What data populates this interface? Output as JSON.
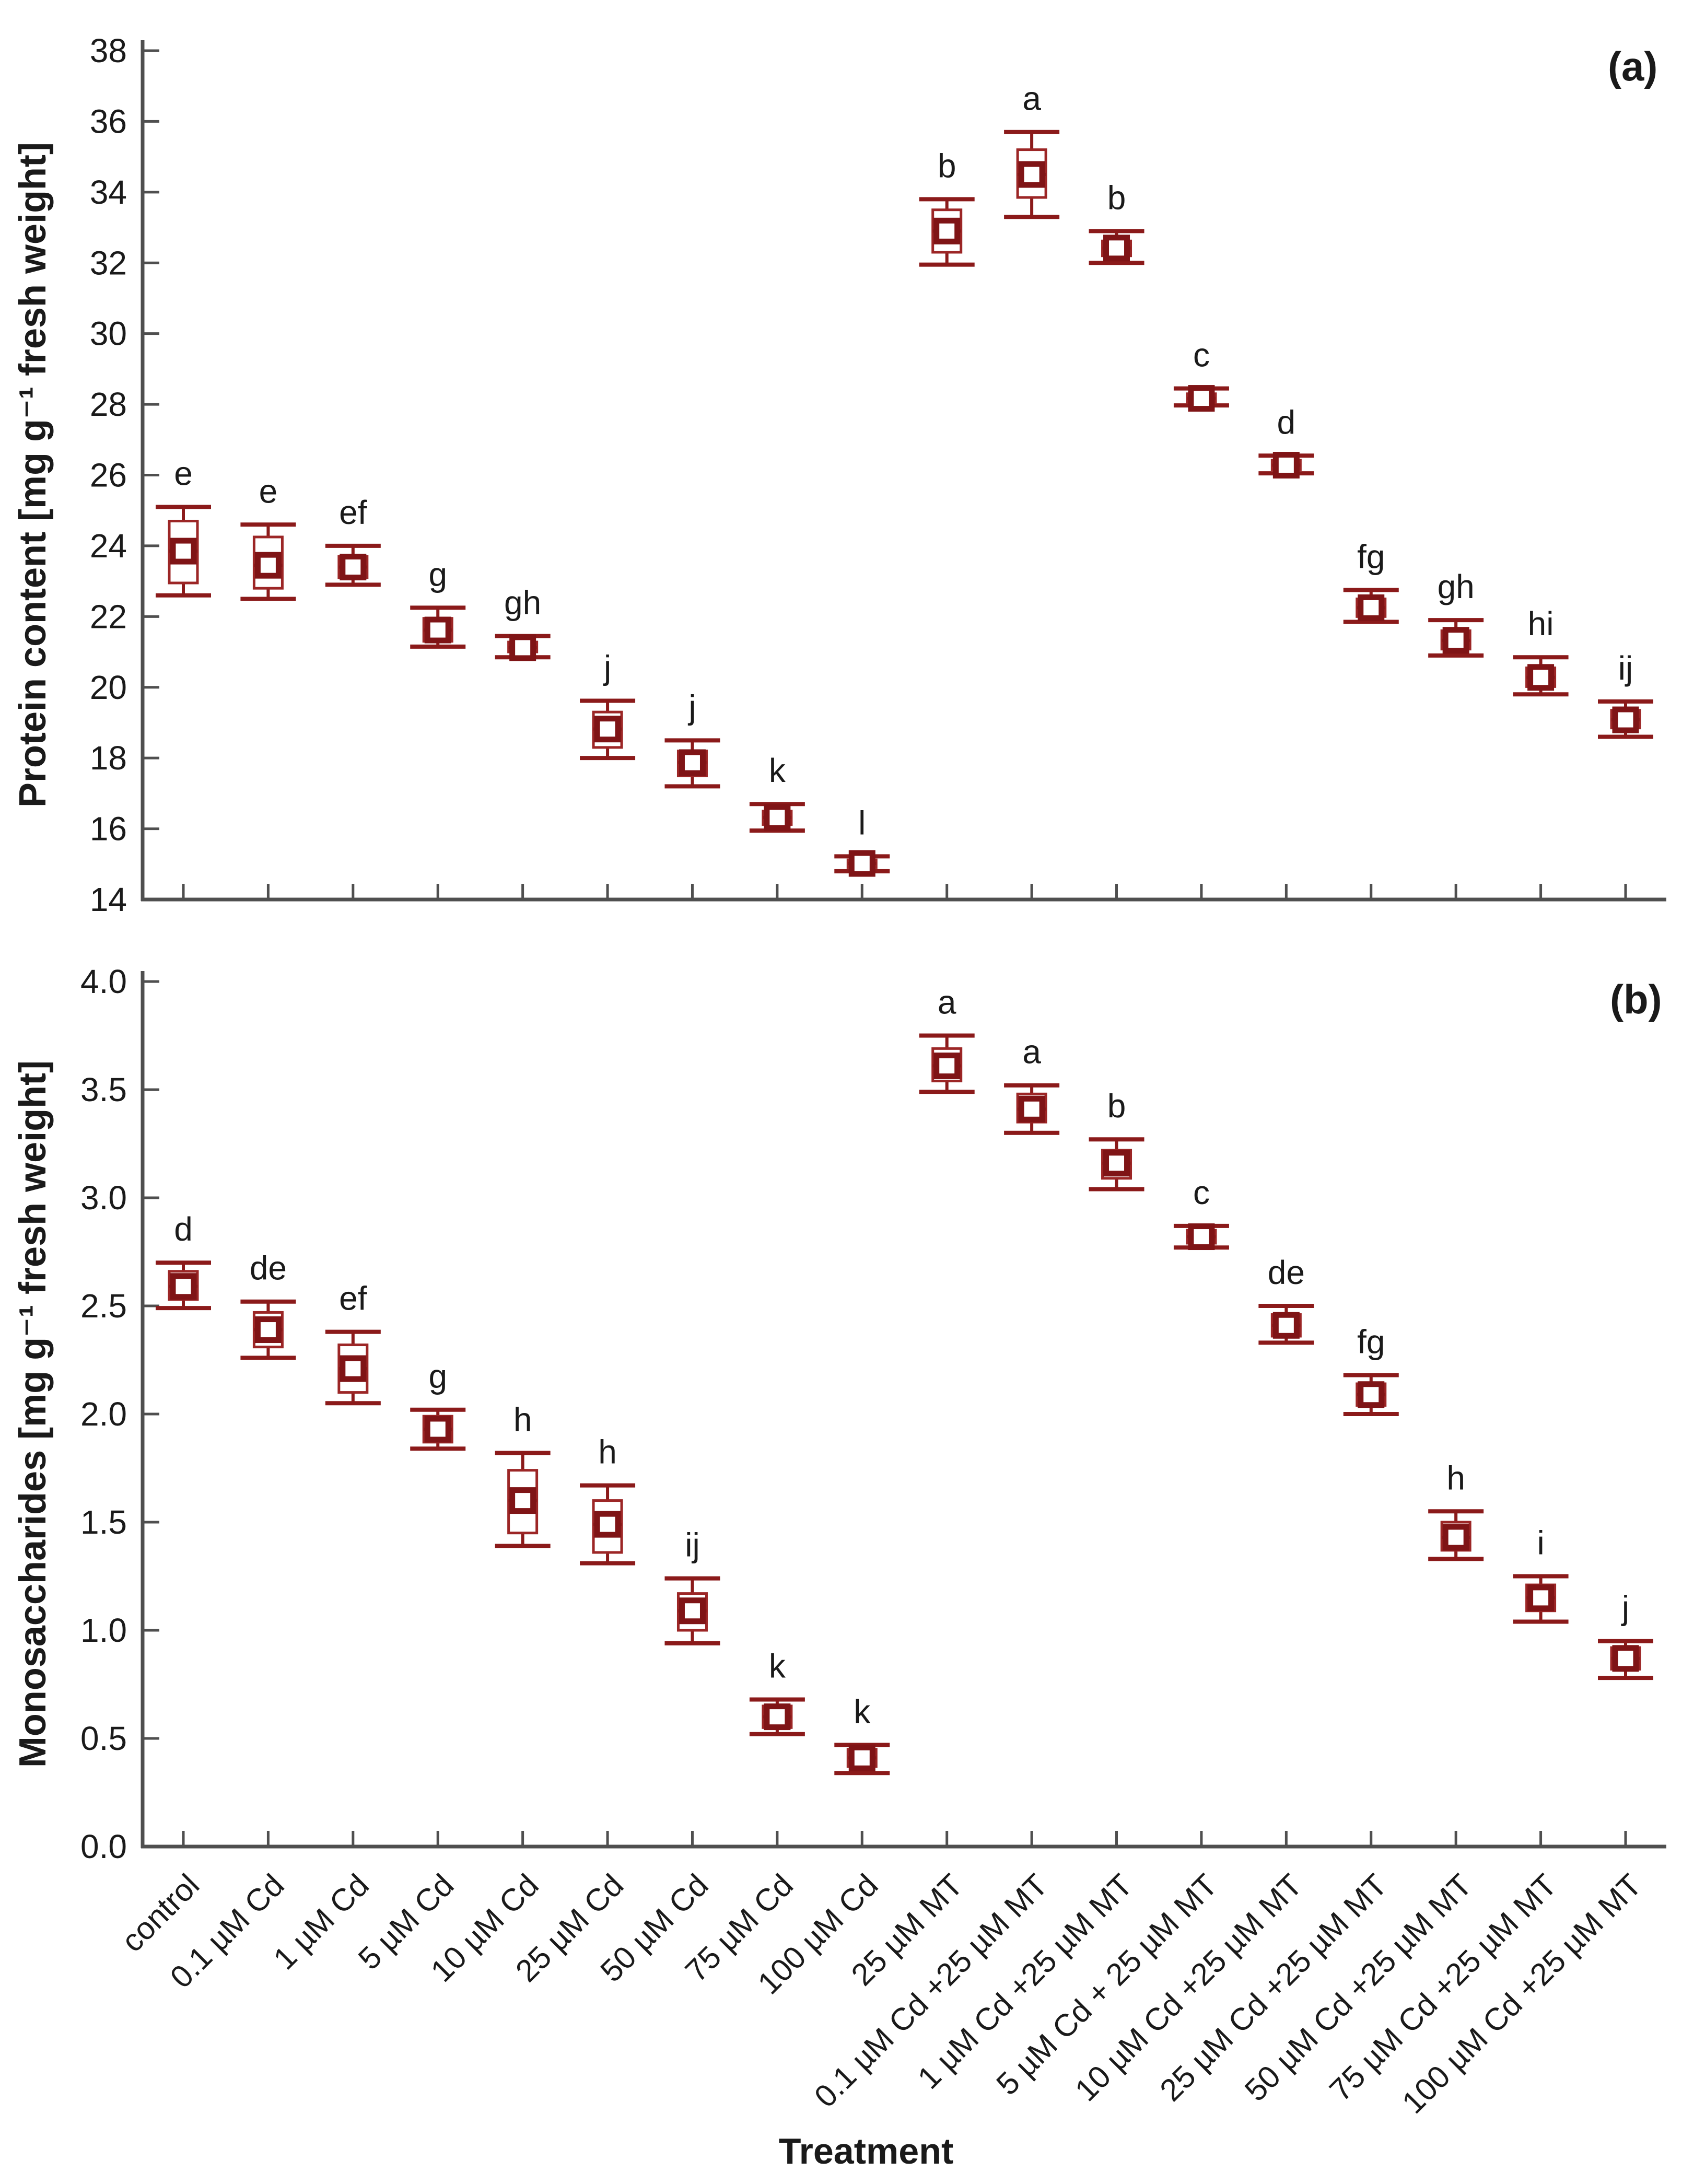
{
  "figure": {
    "panel_a_label": "(a)",
    "panel_b_label": "(b)",
    "x_axis_title": "Treatment",
    "box_color": "#8b1a1a",
    "box_outline_color": "#9c2626",
    "mean_square_color": "#7f1416",
    "axis_color": "#4f4f4f",
    "text_color": "#1a1a1a",
    "background_color": "#ffffff"
  },
  "categories": [
    "control",
    "0.1 µM Cd",
    "1 µM Cd",
    "5 µM Cd",
    "10 µM Cd",
    "25 µM Cd",
    "50 µM Cd",
    "75 µM Cd",
    "100 µM Cd",
    "25 µM MT",
    "0.1 µM Cd +25 µM MT",
    "1 µM Cd +25 µM MT",
    "5 µM Cd + 25 µM MT",
    "10 µM Cd +25 µM MT",
    "25 µM Cd +25 µM MT",
    "50 µM Cd +25 µM MT",
    "75 µM Cd +25 µM MT",
    "100 µM Cd +25 µM MT"
  ],
  "chart_data": [
    {
      "type": "box",
      "panel": "a",
      "title": "",
      "xlabel": "Treatment",
      "ylabel": "Protein content [mg g⁻¹ fresh weight]",
      "ylim": [
        14,
        38
      ],
      "grid": false,
      "x_tick_labels_shown": false,
      "yticks": [
        {
          "value": 14,
          "label": "14"
        },
        {
          "value": 16,
          "label": "16"
        },
        {
          "value": 18,
          "label": "18"
        },
        {
          "value": 20,
          "label": "20"
        },
        {
          "value": 22,
          "label": "22"
        },
        {
          "value": 24,
          "label": "24"
        },
        {
          "value": 26,
          "label": "26"
        },
        {
          "value": 28,
          "label": "28"
        },
        {
          "value": 30,
          "label": "30"
        },
        {
          "value": 32,
          "label": "32"
        },
        {
          "value": 34,
          "label": "34"
        },
        {
          "value": 36,
          "label": "36"
        },
        {
          "value": 38,
          "label": "38"
        }
      ],
      "boxes": [
        {
          "category": "control",
          "letter": "e",
          "low": 22.6,
          "q1": 22.95,
          "mean": 23.85,
          "q3": 24.7,
          "high": 25.1
        },
        {
          "category": "0.1 µM Cd",
          "letter": "e",
          "low": 22.5,
          "q1": 22.8,
          "mean": 23.45,
          "q3": 24.25,
          "high": 24.6
        },
        {
          "category": "1 µM Cd",
          "letter": "ef",
          "low": 22.9,
          "q1": 23.1,
          "mean": 23.4,
          "q3": 23.7,
          "high": 24.0
        },
        {
          "category": "5 µM Cd",
          "letter": "g",
          "low": 21.15,
          "q1": 21.3,
          "mean": 21.62,
          "q3": 21.95,
          "high": 22.25
        },
        {
          "category": "10 µM Cd",
          "letter": "gh",
          "low": 20.85,
          "q1": 21.0,
          "mean": 21.12,
          "q3": 21.28,
          "high": 21.45
        },
        {
          "category": "25 µM Cd",
          "letter": "j",
          "low": 18.0,
          "q1": 18.3,
          "mean": 18.82,
          "q3": 19.3,
          "high": 19.62
        },
        {
          "category": "50 µM Cd",
          "letter": "j",
          "low": 17.2,
          "q1": 17.5,
          "mean": 17.87,
          "q3": 18.2,
          "high": 18.5
        },
        {
          "category": "75 µM Cd",
          "letter": "k",
          "low": 15.95,
          "q1": 16.12,
          "mean": 16.32,
          "q3": 16.5,
          "high": 16.7
        },
        {
          "category": "100 µM Cd",
          "letter": "l",
          "low": 14.8,
          "q1": 14.9,
          "mean": 15.02,
          "q3": 15.12,
          "high": 15.22
        },
        {
          "category": "25 µM MT",
          "letter": "b",
          "low": 31.95,
          "q1": 32.3,
          "mean": 32.9,
          "q3": 33.5,
          "high": 33.8
        },
        {
          "category": "0.1 µM Cd +25 µM MT",
          "letter": "a",
          "low": 33.3,
          "q1": 33.85,
          "mean": 34.5,
          "q3": 35.2,
          "high": 35.7
        },
        {
          "category": "1 µM Cd +25 µM MT",
          "letter": "b",
          "low": 32.0,
          "q1": 32.2,
          "mean": 32.42,
          "q3": 32.62,
          "high": 32.9
        },
        {
          "category": "5 µM Cd + 25 µM MT",
          "letter": "c",
          "low": 27.97,
          "q1": 28.05,
          "mean": 28.17,
          "q3": 28.3,
          "high": 28.45
        },
        {
          "category": "10 µM Cd +25 µM MT",
          "letter": "d",
          "low": 26.05,
          "q1": 26.15,
          "mean": 26.28,
          "q3": 26.42,
          "high": 26.55
        },
        {
          "category": "25 µM Cd +25 µM MT",
          "letter": "fg",
          "low": 21.85,
          "q1": 22.0,
          "mean": 22.25,
          "q3": 22.5,
          "high": 22.75
        },
        {
          "category": "50 µM Cd +25 µM MT",
          "letter": "gh",
          "low": 20.9,
          "q1": 21.08,
          "mean": 21.33,
          "q3": 21.6,
          "high": 21.9
        },
        {
          "category": "75 µM Cd +25 µM MT",
          "letter": "hi",
          "low": 19.8,
          "q1": 20.02,
          "mean": 20.28,
          "q3": 20.55,
          "high": 20.85
        },
        {
          "category": "100 µM Cd +25 µM MT",
          "letter": "ij",
          "low": 18.6,
          "q1": 18.85,
          "mean": 19.08,
          "q3": 19.35,
          "high": 19.6
        }
      ]
    },
    {
      "type": "box",
      "panel": "b",
      "title": "",
      "xlabel": "Treatment",
      "ylabel": "Monosaccharides [mg g⁻¹ fresh weight]",
      "ylim": [
        0,
        4
      ],
      "grid": false,
      "x_tick_labels_shown": true,
      "yticks": [
        {
          "value": 0,
          "label": "0.0"
        },
        {
          "value": 0.5,
          "label": "0.5"
        },
        {
          "value": 1,
          "label": "1.0"
        },
        {
          "value": 1.5,
          "label": "1.5"
        },
        {
          "value": 2,
          "label": "2.0"
        },
        {
          "value": 2.5,
          "label": "2.5"
        },
        {
          "value": 3,
          "label": "3.0"
        },
        {
          "value": 3.5,
          "label": "3.5"
        },
        {
          "value": 4,
          "label": "4.0"
        }
      ],
      "boxes": [
        {
          "category": "control",
          "letter": "d",
          "low": 2.49,
          "q1": 2.53,
          "mean": 2.59,
          "q3": 2.66,
          "high": 2.7
        },
        {
          "category": "0.1 µM Cd",
          "letter": "de",
          "low": 2.26,
          "q1": 2.31,
          "mean": 2.39,
          "q3": 2.47,
          "high": 2.52
        },
        {
          "category": "1 µM Cd",
          "letter": "ef",
          "low": 2.05,
          "q1": 2.1,
          "mean": 2.21,
          "q3": 2.32,
          "high": 2.38
        },
        {
          "category": "5 µM Cd",
          "letter": "g",
          "low": 1.84,
          "q1": 1.87,
          "mean": 1.93,
          "q3": 1.99,
          "high": 2.02
        },
        {
          "category": "10 µM Cd",
          "letter": "h",
          "low": 1.39,
          "q1": 1.45,
          "mean": 1.6,
          "q3": 1.74,
          "high": 1.82
        },
        {
          "category": "25 µM Cd",
          "letter": "h",
          "low": 1.31,
          "q1": 1.36,
          "mean": 1.49,
          "q3": 1.6,
          "high": 1.67
        },
        {
          "category": "50 µM Cd",
          "letter": "ij",
          "low": 0.94,
          "q1": 1.0,
          "mean": 1.09,
          "q3": 1.17,
          "high": 1.24
        },
        {
          "category": "75 µM Cd",
          "letter": "k",
          "low": 0.52,
          "q1": 0.55,
          "mean": 0.6,
          "q3": 0.65,
          "high": 0.68
        },
        {
          "category": "100 µM Cd",
          "letter": "k",
          "low": 0.34,
          "q1": 0.37,
          "mean": 0.41,
          "q3": 0.45,
          "high": 0.47
        },
        {
          "category": "25 µM MT",
          "letter": "a",
          "low": 3.49,
          "q1": 3.54,
          "mean": 3.61,
          "q3": 3.69,
          "high": 3.75
        },
        {
          "category": "0.1 µM Cd +25 µM MT",
          "letter": "a",
          "low": 3.3,
          "q1": 3.35,
          "mean": 3.41,
          "q3": 3.48,
          "high": 3.52
        },
        {
          "category": "1 µM Cd +25 µM MT",
          "letter": "b",
          "low": 3.04,
          "q1": 3.09,
          "mean": 3.16,
          "q3": 3.22,
          "high": 3.27
        },
        {
          "category": "5 µM Cd + 25 µM MT",
          "letter": "c",
          "low": 2.77,
          "q1": 2.79,
          "mean": 2.82,
          "q3": 2.85,
          "high": 2.87
        },
        {
          "category": "10 µM Cd +25 µM MT",
          "letter": "de",
          "low": 2.33,
          "q1": 2.36,
          "mean": 2.41,
          "q3": 2.46,
          "high": 2.5
        },
        {
          "category": "25 µM Cd +25 µM MT",
          "letter": "fg",
          "low": 2.0,
          "q1": 2.04,
          "mean": 2.09,
          "q3": 2.14,
          "high": 2.18
        },
        {
          "category": "50 µM Cd +25 µM MT",
          "letter": "h",
          "low": 1.33,
          "q1": 1.37,
          "mean": 1.43,
          "q3": 1.5,
          "high": 1.55
        },
        {
          "category": "75 µM Cd +25 µM MT",
          "letter": "i",
          "low": 1.04,
          "q1": 1.09,
          "mean": 1.15,
          "q3": 1.21,
          "high": 1.25
        },
        {
          "category": "100 µM Cd +25 µM MT",
          "letter": "j",
          "low": 0.78,
          "q1": 0.82,
          "mean": 0.87,
          "q3": 0.92,
          "high": 0.95
        }
      ]
    }
  ]
}
